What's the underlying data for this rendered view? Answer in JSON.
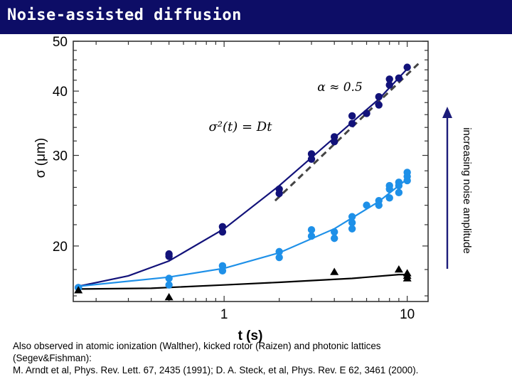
{
  "slide": {
    "title": "Noise-assisted diffusion",
    "title_bar_color": "#0d0d66",
    "citation_lines": [
      "Also observed in atomic ionization (Walther), kicked rotor (Raizen) and photonic lattices",
      "(Segev&Fishman):",
      "M. Arndt et al, Phys. Rev. Lett. 67, 2435 (1991); D. A. Steck, et al, Phys. Rev. E 62, 3461 (2000)."
    ]
  },
  "chart_data": {
    "type": "scatter",
    "xlabel": "t (s)",
    "ylabel": "σ (μm)",
    "x_scale": "log",
    "y_scale": "log",
    "xlim": [
      0.15,
      13
    ],
    "ylim": [
      15.6,
      50
    ],
    "x_ticks": [
      1,
      10
    ],
    "y_ticks": [
      20,
      30,
      40,
      50
    ],
    "grid": false,
    "annotations": {
      "alpha": "α ≈ 0.5",
      "formula": "σ²(t) = Dt",
      "arrow_label": "increasing noise amplitude"
    },
    "series": [
      {
        "marker": "circle",
        "color": "#12127a",
        "points": [
          [
            0.16,
            16.6
          ],
          [
            0.5,
            19.3
          ],
          [
            0.5,
            19.1
          ],
          [
            0.98,
            21.8
          ],
          [
            0.98,
            21.3
          ],
          [
            2.0,
            25.8
          ],
          [
            2.0,
            25.3
          ],
          [
            3.0,
            30.2
          ],
          [
            3.0,
            29.5
          ],
          [
            4.0,
            32.6
          ],
          [
            4.0,
            31.9
          ],
          [
            5.0,
            35.8
          ],
          [
            5.0,
            34.6
          ],
          [
            6.0,
            36.2
          ],
          [
            7.0,
            39.0
          ],
          [
            7.0,
            37.6
          ],
          [
            8.0,
            42.2
          ],
          [
            8.0,
            41.1
          ],
          [
            9.0,
            42.4
          ],
          [
            10.0,
            44.5
          ]
        ],
        "fit": [
          [
            0.16,
            16.7
          ],
          [
            0.3,
            17.5
          ],
          [
            0.5,
            18.7
          ],
          [
            1.0,
            21.6
          ],
          [
            2.0,
            26.2
          ],
          [
            3.0,
            29.7
          ],
          [
            5.0,
            34.8
          ],
          [
            7.0,
            38.6
          ],
          [
            10.0,
            44.2
          ]
        ]
      },
      {
        "marker": "circle",
        "color": "#1e90e8",
        "points": [
          [
            0.16,
            16.6
          ],
          [
            0.5,
            17.3
          ],
          [
            0.5,
            16.8
          ],
          [
            0.98,
            18.3
          ],
          [
            0.98,
            17.9
          ],
          [
            2.0,
            19.5
          ],
          [
            2.0,
            19.0
          ],
          [
            3.0,
            21.5
          ],
          [
            3.0,
            20.9
          ],
          [
            4.0,
            21.3
          ],
          [
            4.0,
            20.7
          ],
          [
            5.0,
            22.8
          ],
          [
            5.0,
            22.2
          ],
          [
            5.0,
            21.6
          ],
          [
            6.0,
            24.0
          ],
          [
            7.0,
            24.5
          ],
          [
            7.0,
            24.0
          ],
          [
            8.0,
            26.2
          ],
          [
            8.0,
            25.8
          ],
          [
            8.0,
            24.8
          ],
          [
            9.0,
            26.6
          ],
          [
            9.0,
            26.2
          ],
          [
            9.0,
            25.4
          ],
          [
            10.0,
            27.8
          ],
          [
            10.0,
            27.3
          ],
          [
            10.0,
            26.8
          ]
        ],
        "fit": [
          [
            0.16,
            16.7
          ],
          [
            0.5,
            17.4
          ],
          [
            1.0,
            18.1
          ],
          [
            2.0,
            19.4
          ],
          [
            4.0,
            21.6
          ],
          [
            7.0,
            24.4
          ],
          [
            10.0,
            27.0
          ]
        ]
      },
      {
        "marker": "triangle",
        "color": "#000000",
        "points": [
          [
            0.16,
            16.4
          ],
          [
            0.5,
            15.9
          ],
          [
            4.0,
            17.8
          ],
          [
            9.0,
            18.0
          ],
          [
            10.0,
            17.7
          ],
          [
            10.0,
            17.5
          ],
          [
            10.0,
            17.3
          ]
        ],
        "fit": [
          [
            0.16,
            16.5
          ],
          [
            0.4,
            16.55
          ],
          [
            1.0,
            16.8
          ],
          [
            2.0,
            17.0
          ],
          [
            5.0,
            17.3
          ],
          [
            9.0,
            17.6
          ],
          [
            10.0,
            17.6
          ]
        ]
      }
    ],
    "reference_line": {
      "style": "dashed",
      "color": "#444444",
      "points": [
        [
          1.9,
          24.5
        ],
        [
          11.5,
          45.2
        ]
      ]
    }
  }
}
